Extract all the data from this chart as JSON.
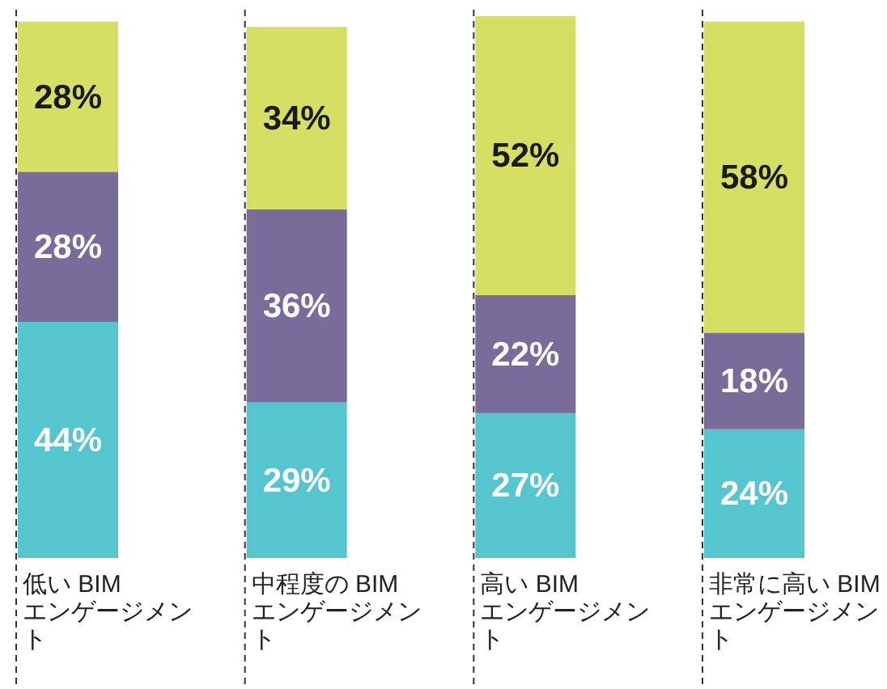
{
  "chart_data": {
    "type": "bar",
    "stacked": true,
    "categories": [
      "低い BIM エンゲージメント",
      "中程度の BIM エンゲージメント",
      "高い BIM エンゲージメント",
      "非常に高い BIM エンゲージメント"
    ],
    "series": [
      {
        "color": "#55c6cf",
        "values": [
          44,
          29,
          27,
          24
        ],
        "value_labels": [
          "44%",
          "29%",
          "27%",
          "24%"
        ]
      },
      {
        "color": "#7a6c9a",
        "values": [
          28,
          36,
          22,
          18
        ],
        "value_labels": [
          "28%",
          "36%",
          "22%",
          "18%"
        ]
      },
      {
        "color": "#d5df63",
        "values": [
          28,
          34,
          52,
          58
        ],
        "value_labels": [
          "28%",
          "34%",
          "52%",
          "58%"
        ]
      }
    ]
  }
}
